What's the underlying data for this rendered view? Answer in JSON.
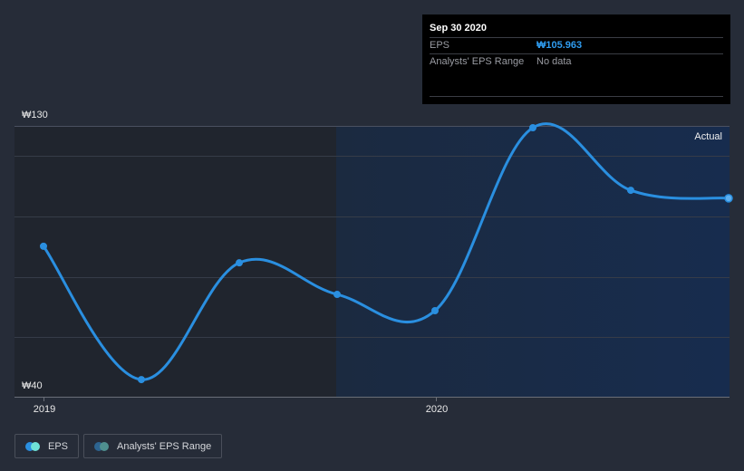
{
  "tooltip": {
    "date": "Sep 30 2020",
    "rows": [
      {
        "label": "EPS",
        "value": "₩105.963"
      },
      {
        "label": "Analysts' EPS Range",
        "value": "No data"
      }
    ]
  },
  "axis": {
    "y_top_label": "₩130",
    "y_bottom_label": "₩40",
    "x_labels": [
      "2019",
      "2020"
    ]
  },
  "region_label": "Actual",
  "legend": [
    {
      "label": "EPS",
      "colors": [
        "#2a8fe0",
        "#6fe3d8"
      ]
    },
    {
      "label": "Analysts' EPS Range",
      "colors": [
        "#2d6490",
        "#4f8f8f"
      ]
    }
  ],
  "colors": {
    "background": "#262c38",
    "past_region": "#1f242d",
    "actual_region": "#172a48",
    "line": "#2a8fe0",
    "grid": "#363c48"
  },
  "chart_data": {
    "type": "line",
    "title": "",
    "xlabel": "",
    "ylabel": "EPS",
    "currency": "₩",
    "ylim": [
      40,
      130
    ],
    "yticks": [
      40,
      60,
      80,
      100,
      120,
      130
    ],
    "x": [
      "Dec 2018",
      "Mar 2019",
      "Jun 2019",
      "Sep 2019",
      "Dec 2019",
      "Mar 2020",
      "Jun 2020",
      "Sep 2020"
    ],
    "series": [
      {
        "name": "EPS",
        "values": [
          90.0,
          45.7,
          84.5,
          74.0,
          68.6,
          129.4,
          108.6,
          105.963
        ]
      }
    ],
    "x_tick_labels": [
      "2019",
      "2020"
    ],
    "annotations": [
      "Actual"
    ],
    "legend": [
      "EPS",
      "Analysts' EPS Range"
    ],
    "legend_position": "bottom-left",
    "grid": true
  }
}
